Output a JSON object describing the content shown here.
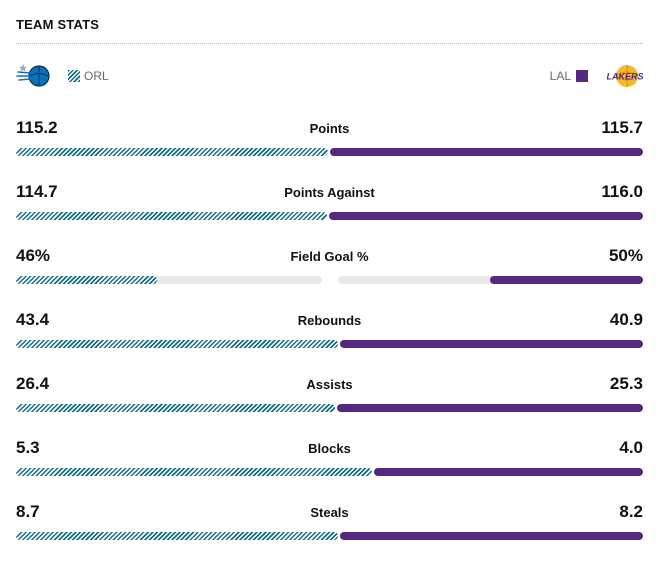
{
  "header": {
    "title": "TEAM STATS"
  },
  "teams": {
    "home": {
      "abbr": "ORL",
      "logo_icon": "orlando-magic-logo-icon",
      "color": "#0f6f86",
      "pattern": "striped"
    },
    "away": {
      "abbr": "LAL",
      "logo_icon": "lakers-logo-icon",
      "logo_text": "LAKERS",
      "color": "#55287f",
      "pattern": "solid"
    }
  },
  "stats": [
    {
      "label": "Points",
      "orl": "115.2",
      "lal": "115.7"
    },
    {
      "label": "Points Against",
      "orl": "114.7",
      "lal": "116.0"
    },
    {
      "label": "Field Goal %",
      "orl": "46%",
      "lal": "50%"
    },
    {
      "label": "Rebounds",
      "orl": "43.4",
      "lal": "40.9"
    },
    {
      "label": "Assists",
      "orl": "26.4",
      "lal": "25.3"
    },
    {
      "label": "Blocks",
      "orl": "5.3",
      "lal": "4.0"
    },
    {
      "label": "Steals",
      "orl": "8.7",
      "lal": "8.2"
    }
  ],
  "colors": {
    "track": "#e9e9e9",
    "divider": "#bdbdbd",
    "legend_text": "#6a6a6a"
  }
}
